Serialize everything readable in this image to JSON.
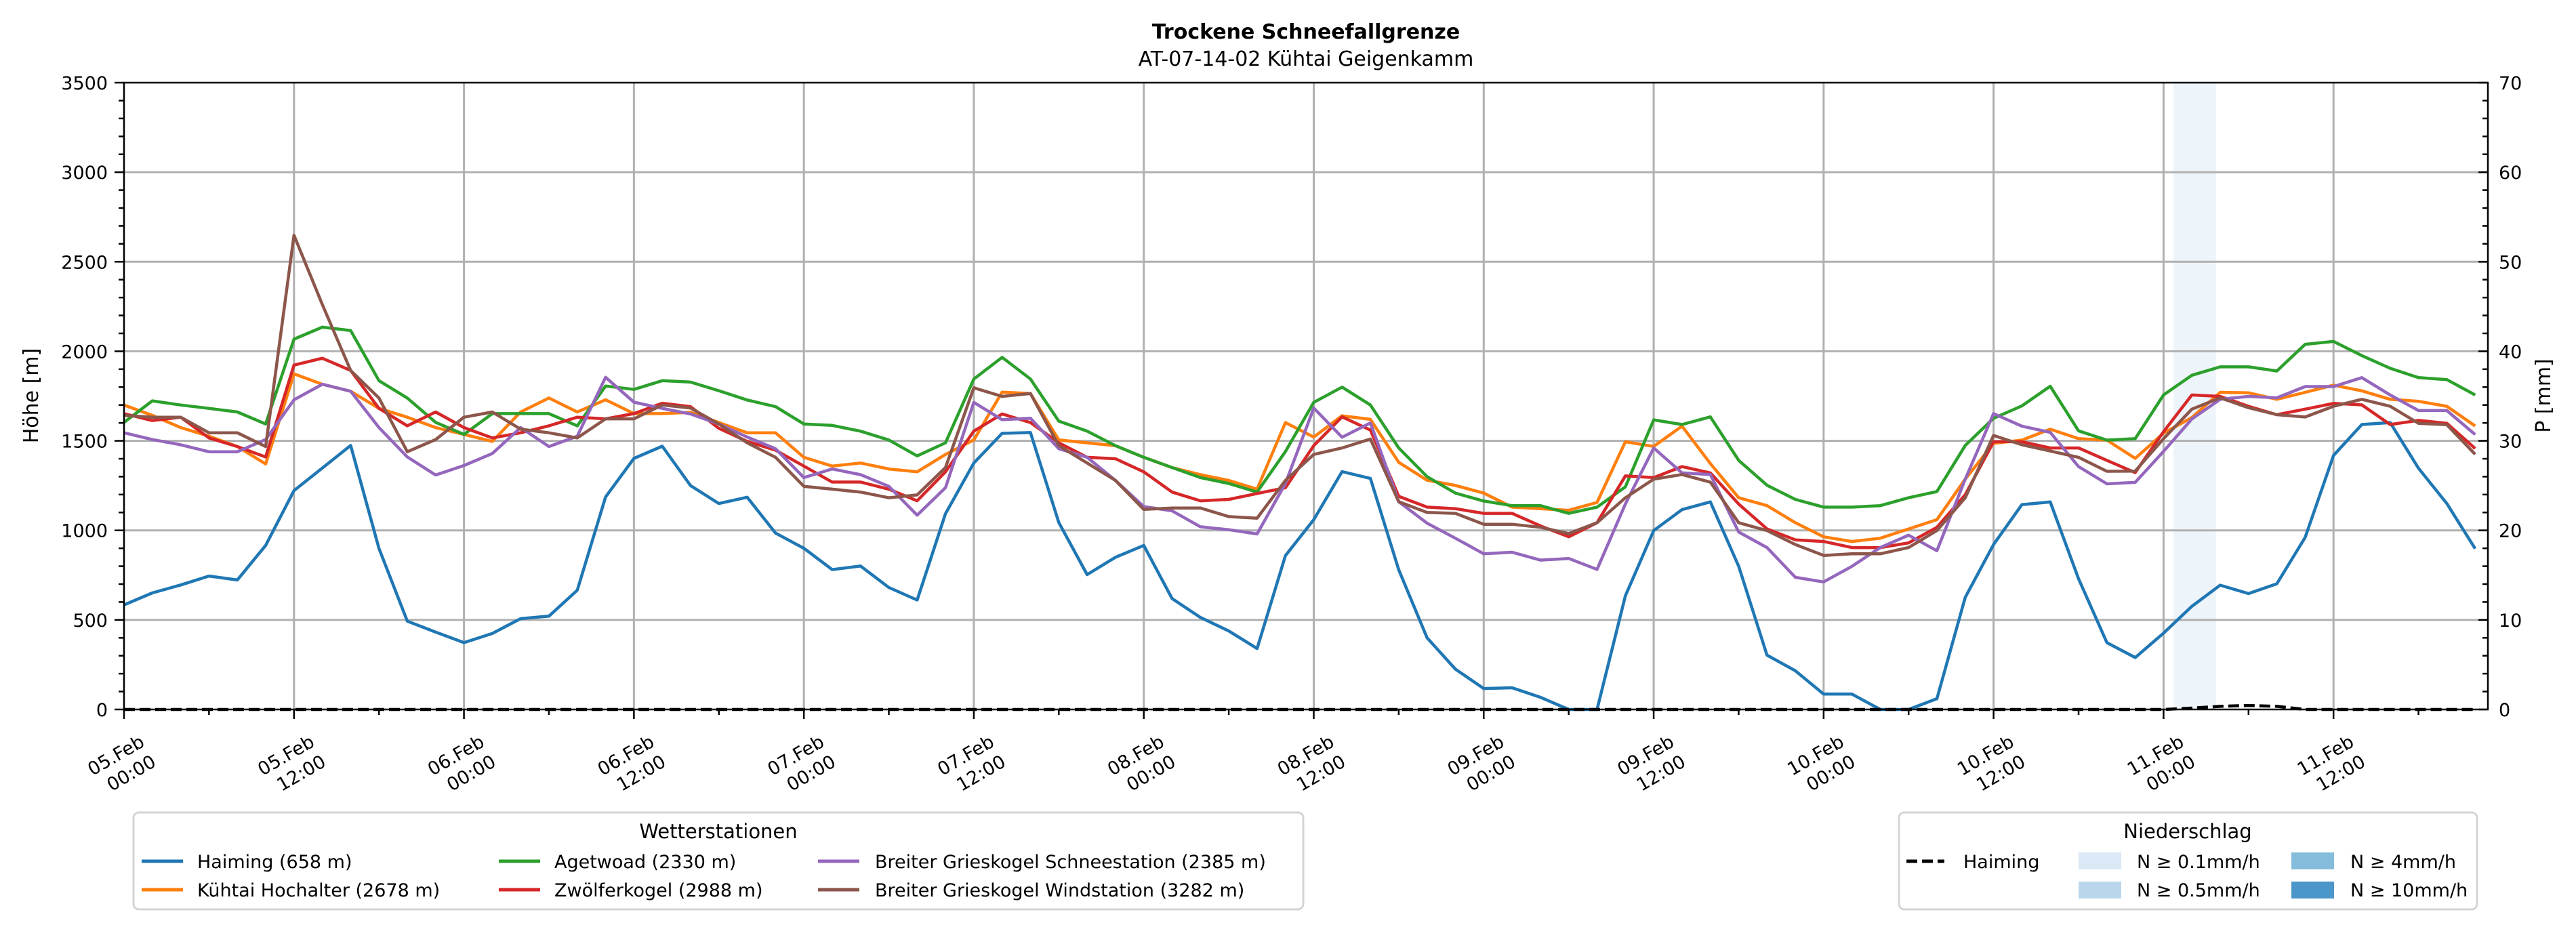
{
  "chart_data": {
    "type": "line",
    "title": "Trockene Schneefallgrenze",
    "subtitle": "AT-07-14-02 Kühtai Geigenkamm",
    "xlabel": "",
    "ylabel": "Höhe [m]",
    "ylabel_right": "P [mm]",
    "grid": true,
    "x": [
      0,
      2,
      4,
      6,
      8,
      10,
      12,
      14,
      16,
      18,
      20,
      22,
      24,
      26,
      28,
      30,
      32,
      34,
      36,
      38,
      40,
      42,
      44,
      46,
      48,
      50,
      52,
      54,
      56,
      58,
      60,
      62,
      64,
      66,
      68,
      70,
      72,
      74,
      76,
      78,
      80,
      82,
      84,
      86,
      88,
      90,
      92,
      94,
      96,
      98,
      100,
      102,
      104,
      106,
      108,
      110,
      112,
      114,
      116,
      118,
      120,
      122,
      124,
      126,
      128,
      130,
      132,
      134,
      136,
      138,
      140,
      142,
      144,
      146,
      148,
      150,
      152,
      154,
      156,
      158,
      160,
      162,
      164,
      166
    ],
    "xlim": [
      0,
      166.9
    ],
    "ylim": [
      0,
      3500
    ],
    "ylim_right": [
      0,
      70
    ],
    "xticks": [
      0,
      12,
      24,
      36,
      48,
      60,
      72,
      84,
      96,
      108,
      120,
      132,
      144,
      156
    ],
    "xtick_labels": [
      [
        "05.Feb",
        "00:00"
      ],
      [
        "05.Feb",
        "12:00"
      ],
      [
        "06.Feb",
        "00:00"
      ],
      [
        "06.Feb",
        "12:00"
      ],
      [
        "07.Feb",
        "00:00"
      ],
      [
        "07.Feb",
        "12:00"
      ],
      [
        "08.Feb",
        "00:00"
      ],
      [
        "08.Feb",
        "12:00"
      ],
      [
        "09.Feb",
        "00:00"
      ],
      [
        "09.Feb",
        "12:00"
      ],
      [
        "10.Feb",
        "00:00"
      ],
      [
        "10.Feb",
        "12:00"
      ],
      [
        "11.Feb",
        "00:00"
      ],
      [
        "11.Feb",
        "12:00"
      ]
    ],
    "yticks": [
      0,
      500,
      1000,
      1500,
      2000,
      2500,
      3000,
      3500
    ],
    "yticks_right": [
      0,
      10,
      20,
      30,
      40,
      50,
      60,
      70
    ],
    "series": [
      {
        "name": "Haiming (658 m)",
        "color": "#1f77b4",
        "values": [
          584,
          651,
          695,
          745,
          723,
          916,
          1222,
          1348,
          1474,
          899,
          493,
          432,
          373,
          424,
          507,
          521,
          666,
          1187,
          1402,
          1470,
          1250,
          1150,
          1185,
          985,
          900,
          781,
          801,
          681,
          611,
          1093,
          1376,
          1542,
          1546,
          1044,
          753,
          850,
          916,
          619,
          514,
          438,
          340,
          859,
          1060,
          1328,
          1290,
          780,
          400,
          225,
          117,
          121,
          68,
          0,
          0,
          634,
          999,
          1116,
          1159,
          800,
          303,
          216,
          86,
          86,
          0,
          0,
          60,
          626,
          921,
          1144,
          1159,
          730,
          373,
          290,
          426,
          576,
          694,
          647,
          702,
          961,
          1418,
          1591,
          1602,
          1347,
          1150,
          898
        ]
      },
      {
        "name": "Kühtai Hochalter (2678 m)",
        "color": "#ff7f0e",
        "values": [
          1700,
          1642,
          1574,
          1526,
          1468,
          1371,
          1874,
          1816,
          1777,
          1681,
          1632,
          1574,
          1536,
          1497,
          1661,
          1739,
          1661,
          1729,
          1652,
          1652,
          1659,
          1602,
          1545,
          1545,
          1408,
          1359,
          1376,
          1343,
          1327,
          1424,
          1505,
          1772,
          1764,
          1505,
          1489,
          1473,
          1408,
          1351,
          1311,
          1279,
          1230,
          1602,
          1521,
          1640,
          1620,
          1380,
          1280,
          1251,
          1208,
          1130,
          1121,
          1112,
          1156,
          1495,
          1469,
          1582,
          1373,
          1182,
          1138,
          1043,
          964,
          938,
          956,
          1008,
          1060,
          1286,
          1486,
          1504,
          1565,
          1512,
          1504,
          1402,
          1543,
          1630,
          1771,
          1768,
          1732,
          1771,
          1811,
          1779,
          1732,
          1721,
          1693,
          1583
        ]
      },
      {
        "name": "Agetwoad (2330 m)",
        "color": "#2ca02c",
        "values": [
          1603,
          1723,
          1700,
          1681,
          1661,
          1594,
          2068,
          2135,
          2116,
          1836,
          1739,
          1603,
          1536,
          1652,
          1652,
          1652,
          1584,
          1806,
          1787,
          1836,
          1828,
          1780,
          1728,
          1691,
          1594,
          1586,
          1554,
          1505,
          1416,
          1489,
          1845,
          1966,
          1845,
          1610,
          1554,
          1473,
          1408,
          1351,
          1295,
          1262,
          1214,
          1440,
          1715,
          1800,
          1700,
          1460,
          1300,
          1208,
          1164,
          1138,
          1138,
          1095,
          1130,
          1243,
          1617,
          1591,
          1634,
          1391,
          1252,
          1173,
          1130,
          1130,
          1138,
          1182,
          1217,
          1474,
          1626,
          1695,
          1805,
          1556,
          1504,
          1512,
          1756,
          1866,
          1913,
          1913,
          1890,
          2039,
          2055,
          1976,
          1905,
          1853,
          1842,
          1756
        ]
      },
      {
        "name": "Zwölferkogel (2988 m)",
        "color": "#d62728",
        "values": [
          1652,
          1613,
          1632,
          1516,
          1468,
          1410,
          1923,
          1961,
          1893,
          1681,
          1584,
          1661,
          1574,
          1516,
          1545,
          1584,
          1632,
          1623,
          1652,
          1710,
          1691,
          1570,
          1497,
          1448,
          1359,
          1270,
          1270,
          1230,
          1165,
          1327,
          1554,
          1650,
          1602,
          1489,
          1408,
          1400,
          1327,
          1214,
          1165,
          1173,
          1206,
          1238,
          1473,
          1634,
          1560,
          1190,
          1130,
          1121,
          1095,
          1095,
          1025,
          964,
          1043,
          1304,
          1295,
          1356,
          1321,
          1147,
          1008,
          947,
          938,
          904,
          904,
          930,
          1017,
          1199,
          1495,
          1495,
          1460,
          1460,
          1391,
          1323,
          1551,
          1756,
          1748,
          1693,
          1646,
          1677,
          1709,
          1701,
          1591,
          1614,
          1598,
          1457
        ]
      },
      {
        "name": "Breiter Grieskogel Schneestation (2385 m)",
        "color": "#9467bd",
        "values": [
          1545,
          1507,
          1478,
          1439,
          1439,
          1507,
          1729,
          1816,
          1777,
          1574,
          1410,
          1309,
          1362,
          1429,
          1574,
          1468,
          1526,
          1855,
          1716,
          1681,
          1650,
          1594,
          1521,
          1456,
          1295,
          1343,
          1311,
          1246,
          1085,
          1238,
          1715,
          1618,
          1626,
          1456,
          1408,
          1279,
          1133,
          1109,
          1020,
          1004,
          980,
          1262,
          1683,
          1520,
          1600,
          1160,
          1040,
          956,
          869,
          878,
          834,
          843,
          782,
          1147,
          1460,
          1321,
          1312,
          991,
          904,
          738,
          712,
          799,
          904,
          973,
          886,
          1286,
          1652,
          1582,
          1547,
          1356,
          1260,
          1268,
          1441,
          1622,
          1732,
          1748,
          1740,
          1803,
          1803,
          1853,
          1756,
          1669,
          1669,
          1535
        ]
      },
      {
        "name": "Breiter Grieskogel Windstation (3282 m)",
        "color": "#8c564b",
        "values": [
          1642,
          1632,
          1632,
          1545,
          1545,
          1468,
          2648,
          2261,
          1893,
          1739,
          1439,
          1507,
          1632,
          1661,
          1565,
          1545,
          1516,
          1623,
          1623,
          1700,
          1683,
          1594,
          1489,
          1408,
          1246,
          1230,
          1214,
          1182,
          1198,
          1351,
          1796,
          1748,
          1764,
          1473,
          1376,
          1279,
          1117,
          1125,
          1125,
          1077,
          1068,
          1279,
          1424,
          1460,
          1510,
          1160,
          1100,
          1095,
          1034,
          1034,
          1017,
          982,
          1043,
          1182,
          1286,
          1312,
          1269,
          1043,
          999,
          921,
          860,
          869,
          869,
          904,
          999,
          1182,
          1530,
          1478,
          1443,
          1408,
          1330,
          1331,
          1512,
          1677,
          1740,
          1685,
          1646,
          1633,
          1693,
          1732,
          1693,
          1598,
          1590,
          1425
        ]
      }
    ],
    "precipitation": {
      "name": "Haiming",
      "color": "#000000",
      "values": [
        0,
        0,
        0,
        0,
        0,
        0,
        0,
        0,
        0,
        0,
        0,
        0,
        0,
        0,
        0,
        0,
        0,
        0,
        0,
        0,
        0,
        0,
        0,
        0,
        0,
        0,
        0,
        0,
        0,
        0,
        0,
        0,
        0,
        0,
        0,
        0,
        0,
        0,
        0,
        0,
        0,
        0,
        0,
        0,
        0,
        0,
        0,
        0,
        0,
        0,
        0,
        0,
        0,
        0,
        0,
        0,
        0,
        0,
        0,
        0,
        0,
        0,
        0,
        0,
        0,
        0,
        0,
        0,
        0,
        0,
        0,
        0,
        0,
        0.15,
        0.35,
        0.45,
        0.35,
        0,
        0,
        0,
        0,
        0,
        0,
        0
      ]
    },
    "precip_bands": [
      {
        "start": 144.7,
        "end": 147.7,
        "level": 0
      }
    ],
    "legend_stations": {
      "title": "Wetterstationen",
      "placement": "bottom-left"
    },
    "legend_precip": {
      "title": "Niederschlag",
      "placement": "bottom-right",
      "levels": [
        {
          "label": "N ≥ 0.1mm/h",
          "color": "#dbe9f6"
        },
        {
          "label": "N ≥ 0.5mm/h",
          "color": "#bad6eb"
        },
        {
          "label": "N ≥ 4mm/h",
          "color": "#85bcdb"
        },
        {
          "label": "N ≥ 10mm/h",
          "color": "#4b97c9"
        }
      ]
    }
  }
}
